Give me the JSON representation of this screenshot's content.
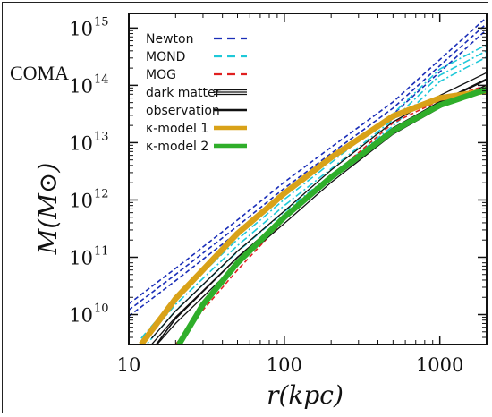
{
  "chart_data": {
    "type": "line",
    "title": "",
    "annotation": "COMA",
    "xlabel": "r(kpc)",
    "ylabel": "M(M⊙)",
    "xscale": "log",
    "yscale": "log",
    "xlim": [
      10,
      2000
    ],
    "ylim": [
      3000000000.0,
      1800000000000000.0
    ],
    "grid": false,
    "legend_position": "top-left",
    "x_ticks": [
      {
        "value": 10,
        "label": "10"
      },
      {
        "value": 100,
        "label": "100"
      },
      {
        "value": 1000,
        "label": "1000"
      }
    ],
    "y_ticks": [
      {
        "value": 10000000000.0,
        "base": "10",
        "exp": "10"
      },
      {
        "value": 100000000000.0,
        "base": "10",
        "exp": "11"
      },
      {
        "value": 1000000000000.0,
        "base": "10",
        "exp": "12"
      },
      {
        "value": 10000000000000.0,
        "base": "10",
        "exp": "13"
      },
      {
        "value": 100000000000000.0,
        "base": "10",
        "exp": "14"
      },
      {
        "value": 1000000000000000.0,
        "base": "10",
        "exp": "15"
      }
    ],
    "series": [
      {
        "name": "Newton",
        "color": "#1a2eb8",
        "style": "dashed",
        "band": true,
        "x": [
          10,
          20,
          50,
          100,
          200,
          500,
          1000,
          2000
        ],
        "y": [
          12000000000.0,
          50000000000.0,
          350000000000.0,
          1600000000000.0,
          6500000000000.0,
          40000000000000.0,
          220000000000000.0,
          1200000000000000.0
        ]
      },
      {
        "name": "MOND",
        "color": "#1ec8d8",
        "style": "dashdot",
        "band": true,
        "x": [
          12,
          20,
          50,
          100,
          200,
          500,
          1000,
          2000
        ],
        "y": [
          3000000000.0,
          15000000000.0,
          160000000000.0,
          800000000000.0,
          3500000000000.0,
          25000000000000.0,
          150000000000000.0,
          400000000000000.0
        ]
      },
      {
        "name": "MOG",
        "color": "#e02020",
        "style": "dashed",
        "band": false,
        "x": [
          20,
          30,
          50,
          100,
          200,
          500,
          1000,
          2000
        ],
        "y": [
          3000000000.0,
          12000000000.0,
          60000000000.0,
          450000000000.0,
          2600000000000.0,
          22000000000000.0,
          55000000000000.0,
          100000000000000.0
        ]
      },
      {
        "name": "dark matter",
        "color": "#111111",
        "style": "double",
        "band": true,
        "x": [
          14,
          20,
          50,
          100,
          200,
          500,
          1000,
          2000
        ],
        "y": [
          3000000000.0,
          9000000000.0,
          100000000000.0,
          500000000000.0,
          2600000000000.0,
          18000000000000.0,
          52000000000000.0,
          130000000000000.0
        ]
      },
      {
        "name": "observation",
        "color": "#111111",
        "style": "solid",
        "band": false,
        "x": [
          15,
          20,
          50,
          100,
          200,
          500,
          1000,
          2000
        ],
        "y": [
          3000000000.0,
          8500000000.0,
          100000000000.0,
          500000000000.0,
          2600000000000.0,
          18000000000000.0,
          50000000000000.0,
          125000000000000.0
        ]
      },
      {
        "name": "κ-model 1",
        "color": "#d9a218",
        "style": "thick",
        "band": false,
        "x": [
          12,
          20,
          50,
          100,
          200,
          500,
          1000,
          2000
        ],
        "y": [
          3000000000.0,
          19000000000.0,
          260000000000.0,
          1300000000000.0,
          5500000000000.0,
          29000000000000.0,
          60000000000000.0,
          80000000000000.0
        ]
      },
      {
        "name": "κ-model 2",
        "color": "#2fae2a",
        "style": "thick",
        "band": false,
        "x": [
          21,
          30,
          50,
          100,
          200,
          500,
          1000,
          2000
        ],
        "y": [
          3000000000.0,
          15000000000.0,
          80000000000.0,
          500000000000.0,
          2500000000000.0,
          16000000000000.0,
          45000000000000.0,
          85000000000000.0
        ]
      }
    ]
  }
}
